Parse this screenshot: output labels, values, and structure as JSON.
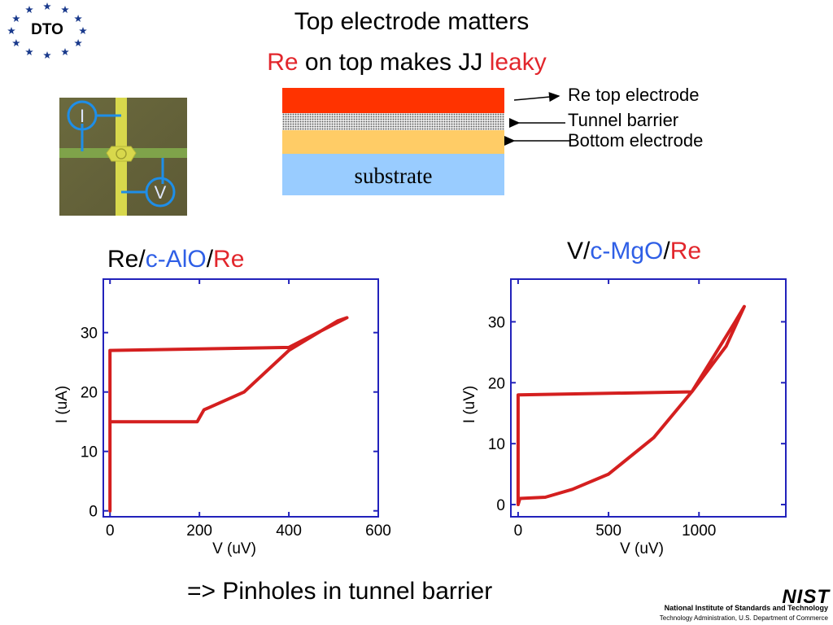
{
  "logo": {
    "text": "DTO"
  },
  "title": "Top electrode matters",
  "subtitle": {
    "part1": "Re",
    "part2": " on top makes JJ ",
    "part3": "leaky"
  },
  "stack": {
    "labels": [
      "Re top electrode",
      "Tunnel barrier",
      "Bottom electrode"
    ],
    "substrate": "substrate",
    "colors": {
      "top": "#ff3300",
      "barrier": "#d8d8d8",
      "bottom": "#ffcc66",
      "substrate": "#99ccff"
    }
  },
  "device": {
    "current_label": "I",
    "voltage_label": "V"
  },
  "plots": [
    {
      "heading": {
        "a": "Re/",
        "b": "c-AlO",
        "c": "/",
        "d": "Re"
      }
    },
    {
      "heading": {
        "a": "V/",
        "b": "c-MgO",
        "c": "/",
        "d": "Re"
      }
    }
  ],
  "footer": "=> Pinholes in tunnel barrier",
  "nist": {
    "logo": "NIST",
    "name": "National Institute of Standards and Technology",
    "sub": "Technology Administration, U.S. Department of Commerce"
  },
  "chart_data": [
    {
      "type": "line",
      "xlabel": "V (uV)",
      "ylabel": "I (uA)",
      "xlim": [
        -15,
        600
      ],
      "ylim": [
        -1,
        39
      ],
      "xticks": [
        0,
        200,
        400,
        600
      ],
      "yticks": [
        0,
        10,
        20,
        30
      ],
      "color": "#d41f1f",
      "series": [
        {
          "x": [
            0,
            0,
            400,
            530,
            510,
            400,
            300,
            210,
            195,
            150,
            0
          ],
          "y": [
            0,
            27,
            27.5,
            32.5,
            32,
            27,
            20,
            17,
            15,
            15,
            15
          ]
        }
      ]
    },
    {
      "type": "line",
      "xlabel": "V (uV)",
      "ylabel": "I (uV)",
      "xlim": [
        -40,
        1480
      ],
      "ylim": [
        -2,
        37
      ],
      "xticks": [
        0,
        500,
        1000
      ],
      "yticks": [
        0,
        10,
        20,
        30
      ],
      "color": "#d41f1f",
      "series": [
        {
          "x": [
            0,
            0,
            960,
            1150,
            1250,
            1200,
            960,
            750,
            500,
            300,
            150,
            10,
            0
          ],
          "y": [
            0,
            18,
            18.5,
            26,
            32.5,
            30,
            18.5,
            11,
            5,
            2.5,
            1.2,
            1,
            0
          ]
        }
      ]
    }
  ]
}
